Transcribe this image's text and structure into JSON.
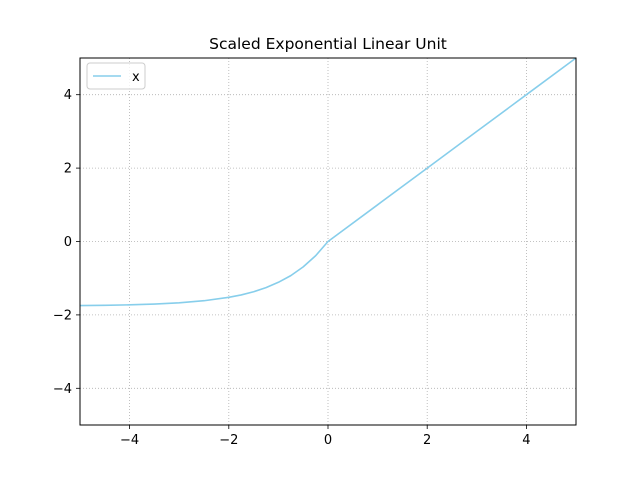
{
  "chart_data": {
    "type": "line",
    "title": "Scaled Exponential Linear Unit",
    "xlabel": "",
    "ylabel": "",
    "xlim": [
      -5,
      5
    ],
    "ylim": [
      -5,
      5
    ],
    "x_ticks": [
      -4,
      -2,
      0,
      2,
      4
    ],
    "x_tick_labels": [
      "−4",
      "−2",
      "0",
      "2",
      "4"
    ],
    "y_ticks": [
      -4,
      -2,
      0,
      2,
      4
    ],
    "y_tick_labels": [
      "−4",
      "−2",
      "0",
      "2",
      "4"
    ],
    "grid": true,
    "grid_style": "dotted",
    "legend_position": "top-left",
    "series": [
      {
        "name": "x",
        "color": "#87CEEB",
        "x": [
          -5,
          -4.5,
          -4,
          -3.5,
          -3,
          -2.5,
          -2,
          -1.75,
          -1.5,
          -1.25,
          -1,
          -0.75,
          -0.5,
          -0.25,
          0,
          1,
          2,
          3,
          4,
          5
        ],
        "y": [
          -1.746,
          -1.739,
          -1.726,
          -1.705,
          -1.67,
          -1.614,
          -1.52,
          -1.456,
          -1.37,
          -1.258,
          -1.111,
          -0.93,
          -0.692,
          -0.389,
          0,
          1.0,
          2.0,
          3.0,
          4.0,
          5.0
        ]
      }
    ]
  }
}
